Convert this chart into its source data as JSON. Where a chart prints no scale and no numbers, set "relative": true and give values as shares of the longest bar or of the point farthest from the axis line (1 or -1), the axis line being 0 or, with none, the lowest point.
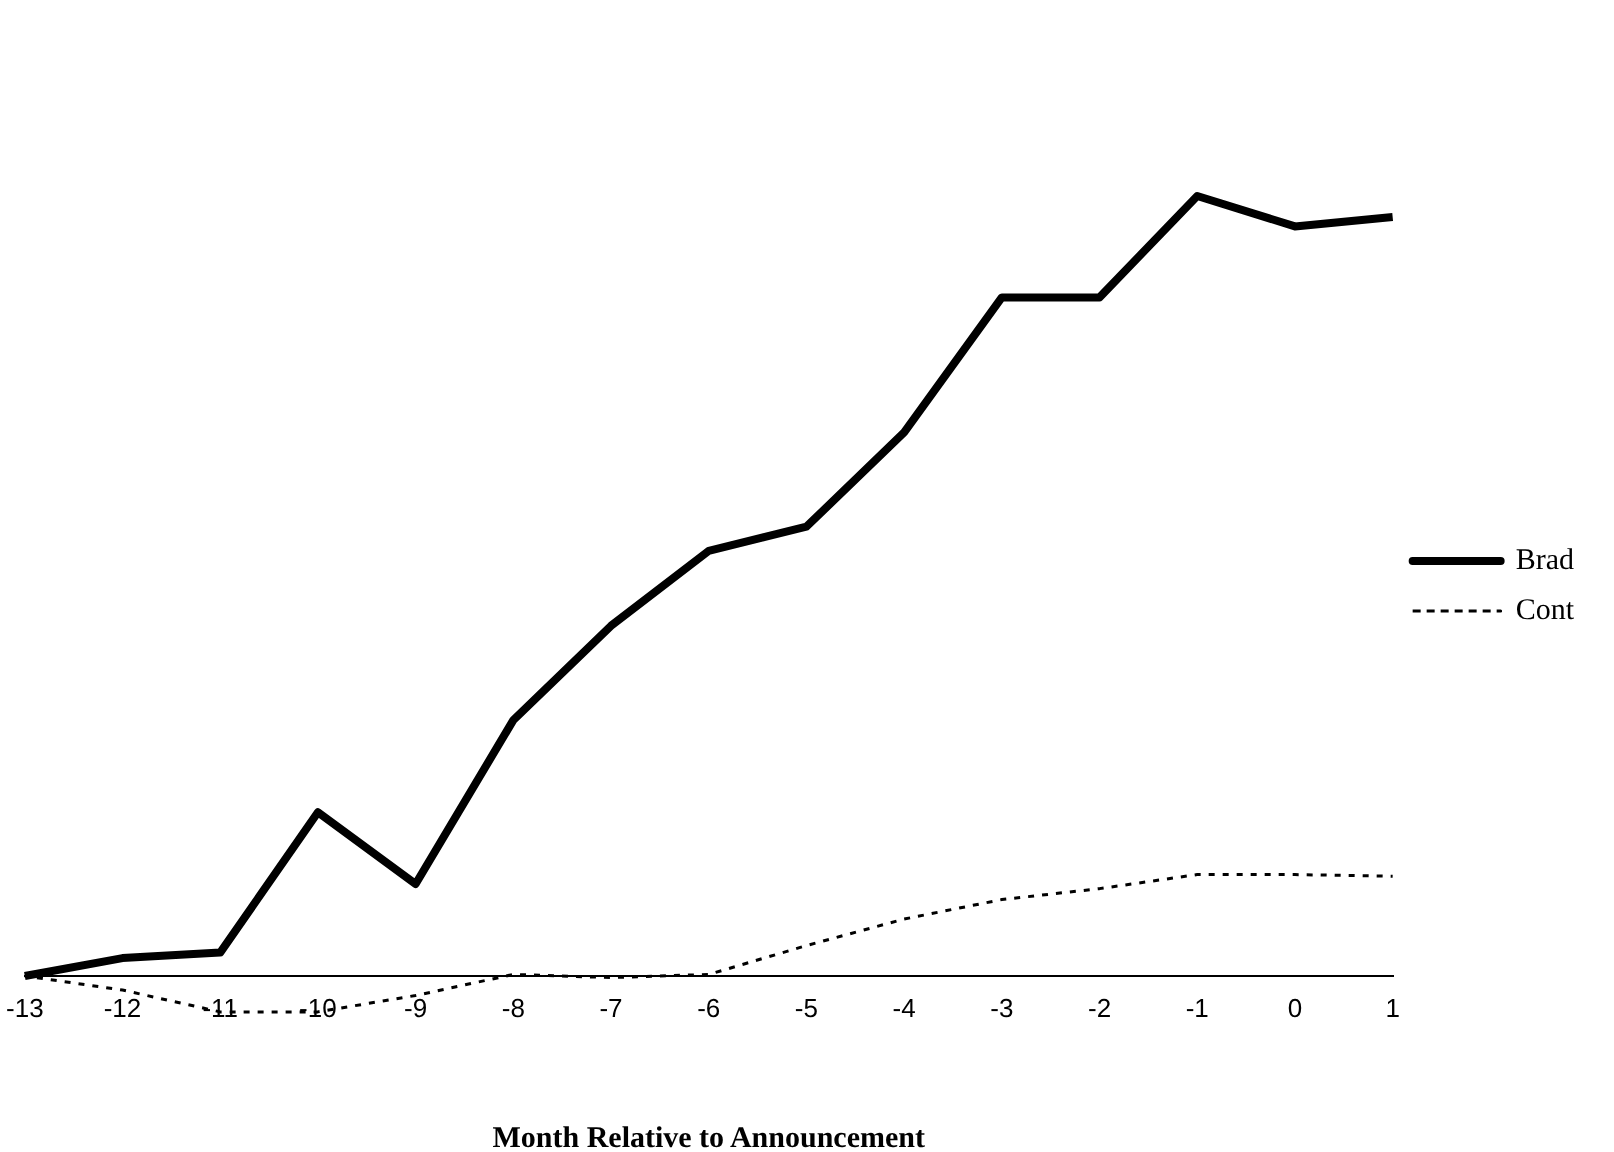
{
  "chart_data": {
    "type": "line",
    "relative": true,
    "xlabel": "Month Relative to Announcement",
    "categories": [
      "-13",
      "-12",
      "-11",
      "-10",
      "-9",
      "-8",
      "-7",
      "-6",
      "-5",
      "-4",
      "-3",
      "-2",
      "-1",
      "0",
      "1"
    ],
    "series": [
      {
        "name": "Brad",
        "color": "#000000",
        "line_style": "solid",
        "values": [
          0,
          0.023,
          0.03,
          0.21,
          0.118,
          0.328,
          0.449,
          0.545,
          0.576,
          0.697,
          0.87,
          0.87,
          1,
          0.961,
          0.973
        ]
      },
      {
        "name": "Cont",
        "color": "#000000",
        "line_style": "dotted",
        "values": [
          0,
          -0.018,
          -0.046,
          -0.046,
          -0.025,
          0.002,
          -0.002,
          0.002,
          0.039,
          0.073,
          0.098,
          0.112,
          0.13,
          0.13,
          0.128
        ]
      }
    ],
    "legend": "right",
    "grid": false,
    "marker": "none"
  }
}
